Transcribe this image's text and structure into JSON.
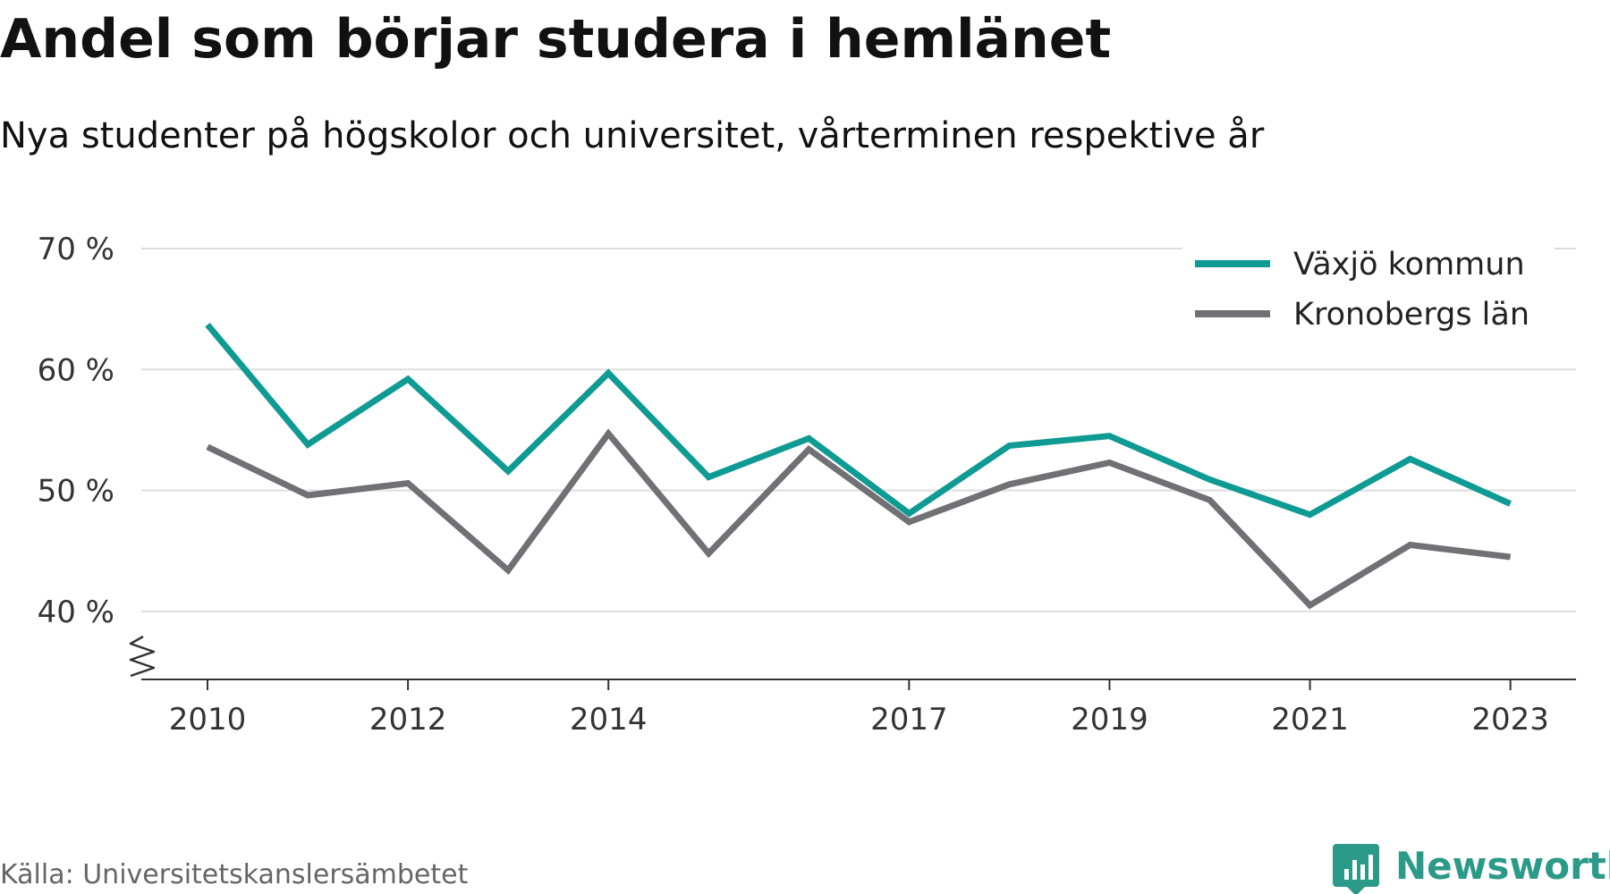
{
  "chart_data": {
    "type": "line",
    "title": "Andel som börjar studera i hemlänet",
    "subtitle": "Nya studenter på högskolor och universitet, vårterminen respektive år",
    "x": [
      2010,
      2011,
      2012,
      2013,
      2014,
      2015,
      2016,
      2017,
      2018,
      2019,
      2020,
      2021,
      2022,
      2023
    ],
    "x_ticks": [
      "2010",
      "2012",
      "2014",
      "2017",
      "2019",
      "2021",
      "2023"
    ],
    "y_ticks": [
      "70 %",
      "60 %",
      "50 %",
      "40 %"
    ],
    "ylim": [
      35,
      70
    ],
    "y_axis_break": true,
    "grid": true,
    "legend_position": "top-right",
    "series": [
      {
        "name": "Växjö kommun",
        "color": "#0f9b94",
        "values": [
          63.7,
          53.8,
          59.2,
          51.6,
          59.7,
          51.1,
          54.3,
          48.1,
          53.7,
          54.5,
          50.9,
          48.0,
          52.6,
          48.9
        ]
      },
      {
        "name": "Kronobergs län",
        "color": "#707075",
        "values": [
          53.6,
          49.6,
          50.6,
          43.4,
          54.7,
          44.8,
          53.4,
          47.4,
          50.5,
          52.3,
          49.2,
          40.5,
          45.5,
          44.5
        ]
      }
    ]
  },
  "footer": {
    "source": "Källa: Universitetskanslersämbetet",
    "brand": "Newsworthy",
    "brand_color": "#2c9a88",
    "brand_icon": "bar-chart-speech-bubble-icon"
  }
}
